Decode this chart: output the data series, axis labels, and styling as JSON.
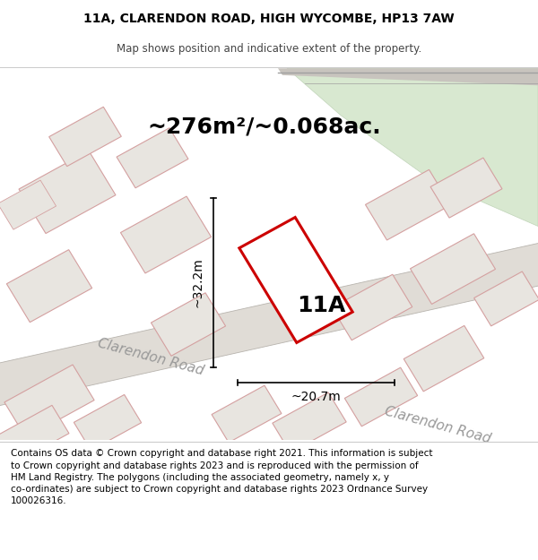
{
  "title": "11A, CLARENDON ROAD, HIGH WYCOMBE, HP13 7AW",
  "subtitle": "Map shows position and indicative extent of the property.",
  "area_label": "~276m²/~0.068ac.",
  "property_label": "11A",
  "dim_horizontal": "~20.7m",
  "dim_vertical": "~32.2m",
  "road_label_1": "Clarendon Road",
  "road_label_2": "Clarendon Road",
  "footer_text": "Contains OS data © Crown copyright and database right 2021. This information is subject\nto Crown copyright and database rights 2023 and is reproduced with the permission of\nHM Land Registry. The polygons (including the associated geometry, namely x, y\nco-ordinates) are subject to Crown copyright and database rights 2023 Ordnance Survey\n100026316.",
  "map_bg": "#f2f0ed",
  "road_fill": "#e0dcd6",
  "building_fill": "#e8e5e0",
  "building_edge": "#d4a0a0",
  "property_fill": "#ffffff",
  "property_edge": "#cc0000",
  "green_fill": "#d8e8d0",
  "green_edge": "#c0d4b8",
  "title_fontsize": 10,
  "subtitle_fontsize": 8.5,
  "area_fontsize": 18,
  "label_fontsize": 18,
  "dim_fontsize": 10,
  "road_fontsize": 11,
  "footer_fontsize": 7.5
}
